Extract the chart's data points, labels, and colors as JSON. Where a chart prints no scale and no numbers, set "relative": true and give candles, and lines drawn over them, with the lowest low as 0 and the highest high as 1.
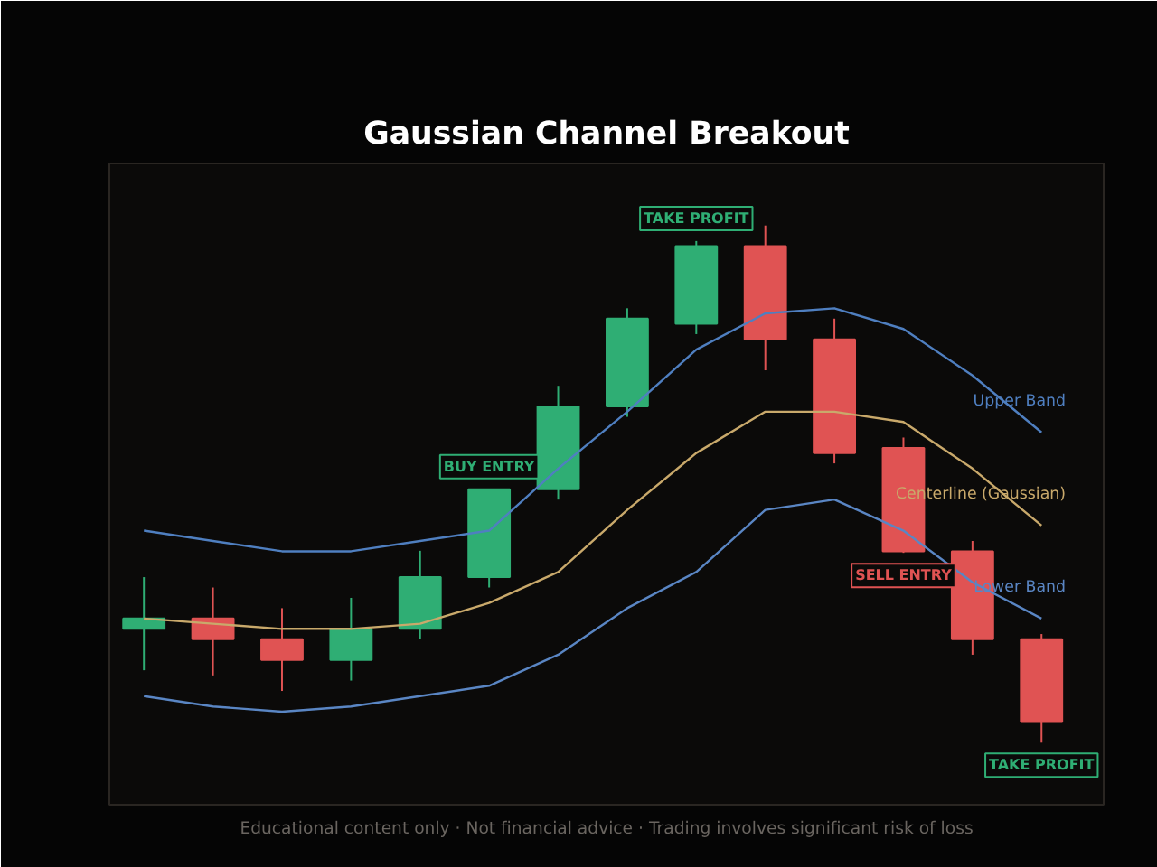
{
  "chart_data": {
    "type": "candlestick",
    "title": "Gaussian Channel Breakout",
    "relative": true,
    "categories": [
      null,
      null,
      null,
      null,
      null,
      null,
      null,
      null,
      null,
      null,
      null,
      null,
      null,
      null
    ],
    "ohlc": [
      [
        0.22,
        0.32,
        0.14,
        0.24
      ],
      [
        0.24,
        0.3,
        0.13,
        0.2
      ],
      [
        0.2,
        0.26,
        0.1,
        0.16
      ],
      [
        0.16,
        0.28,
        0.12,
        0.22
      ],
      [
        0.22,
        0.371,
        0.2,
        0.32
      ],
      [
        0.32,
        0.49,
        0.3,
        0.49
      ],
      [
        0.49,
        0.69,
        0.47,
        0.65
      ],
      [
        0.65,
        0.84,
        0.63,
        0.82
      ],
      [
        0.81,
        0.97,
        0.79,
        0.96
      ],
      [
        0.96,
        1,
        0.72,
        0.78
      ],
      [
        0.78,
        0.82,
        0.54,
        0.56
      ],
      [
        0.57,
        0.59,
        0.367,
        0.37
      ],
      [
        0.37,
        0.39,
        0.17,
        0.2
      ],
      [
        0.2,
        0.21,
        0,
        0.04
      ]
    ],
    "colors": [
      "#2fae74",
      "#e05353",
      "#e05353",
      "#2fae74",
      "#2fae74",
      "#2fae74",
      "#2fae74",
      "#2fae74",
      "#2fae74",
      "#e05353",
      "#e05353",
      "#e05353",
      "#e05353",
      "#e05353"
    ],
    "series": [
      {
        "name": "Upper Band",
        "type": "line",
        "color": "#4f7fc0",
        "values": [
          0.41,
          0.39,
          0.37,
          0.37,
          0.39,
          0.41,
          0.53,
          0.64,
          0.76,
          0.83,
          0.84,
          0.8,
          0.71,
          0.6
        ]
      },
      {
        "name": "Centerline (Gaussian)",
        "type": "line",
        "color": "#c9a96b",
        "values": [
          0.24,
          0.23,
          0.22,
          0.22,
          0.23,
          0.27,
          0.33,
          0.45,
          0.56,
          0.64,
          0.64,
          0.62,
          0.53,
          0.42
        ]
      },
      {
        "name": "Lower Band",
        "type": "line",
        "color": "#5a86c4",
        "values": [
          0.09,
          0.07,
          0.06,
          0.07,
          0.09,
          0.11,
          0.17,
          0.26,
          0.33,
          0.45,
          0.47,
          0.41,
          0.31,
          0.24
        ]
      }
    ],
    "annotations": [
      {
        "text": "BUY ENTRY",
        "y": 0.49
      },
      {
        "text": "TAKE PROFIT",
        "y": 0.97
      },
      {
        "text": "SELL ENTRY",
        "y": 0.367
      },
      {
        "text": "TAKE PROFIT",
        "y": 0
      },
      "Educational content only · Not financial advice · Trading involves significant risk of loss"
    ],
    "grid": false
  }
}
